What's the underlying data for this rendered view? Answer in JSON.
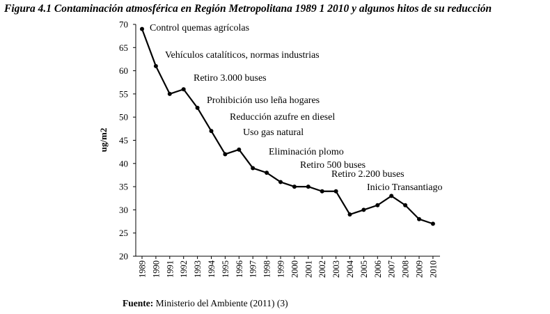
{
  "figure": {
    "title": "Figura 4.1 Contaminación atmosférica en Región Metropolitana 1989 1 2010 y algunos hitos de su reducción",
    "source_label": "Fuente:",
    "source_text": "Ministerio del Ambiente  (2011) (3)"
  },
  "chart_data": {
    "type": "line",
    "title": "",
    "xlabel": "",
    "ylabel": "ug/m2",
    "ylim": [
      20,
      70
    ],
    "yticks": [
      20,
      25,
      30,
      35,
      40,
      45,
      50,
      55,
      60,
      65,
      70
    ],
    "grid": false,
    "legend": "none",
    "x": [
      "1989",
      "1990",
      "1991",
      "1992",
      "1993",
      "1994",
      "1995",
      "1996",
      "1997",
      "1998",
      "1999",
      "2000",
      "2001",
      "2002",
      "2003",
      "2004",
      "2005",
      "2006",
      "2007",
      "2008",
      "2009",
      "2010"
    ],
    "series": [
      {
        "values": [
          69,
          61,
          55,
          56,
          52,
          47,
          42,
          43,
          39,
          38,
          36,
          35,
          35,
          34,
          34,
          29,
          30,
          31,
          33,
          31,
          28,
          27
        ]
      }
    ],
    "annotations": [
      {
        "text": "Control quemas agrícolas",
        "year": "1989"
      },
      {
        "text": "Vehículos catalíticos, normas industrias",
        "year": "1990"
      },
      {
        "text": "Retiro 3.000 buses",
        "year": "1992"
      },
      {
        "text": "Prohibición uso leña hogares",
        "year": "1994"
      },
      {
        "text": "Reducción azufre en diesel",
        "year": "1996"
      },
      {
        "text": "Uso gas natural",
        "year": "1997"
      },
      {
        "text": "Eliminación plomo",
        "year": "1998"
      },
      {
        "text": "Retiro 500 buses",
        "year": "2001"
      },
      {
        "text": "Retiro 2.200 buses",
        "year": "2003"
      },
      {
        "text": "Inicio Transantiago",
        "year": "2006"
      }
    ],
    "line_color": "#000000"
  }
}
